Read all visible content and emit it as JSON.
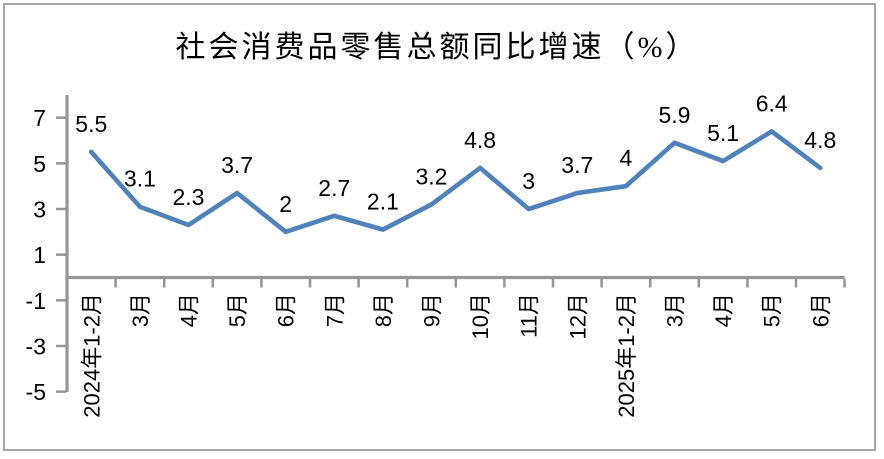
{
  "frame": {
    "background_color": "#ffffff",
    "border_color": "#a6a6a6"
  },
  "chart_data": {
    "type": "line",
    "title": "社会消费品零售总额同比增速（%）",
    "xlabel": "",
    "ylabel": "",
    "categories": [
      "2024年1-2月",
      "3月",
      "4月",
      "5月",
      "6月",
      "7月",
      "8月",
      "9月",
      "10月",
      "11月",
      "12月",
      "2025年1-2月",
      "3月",
      "4月",
      "5月",
      "6月"
    ],
    "series": [
      {
        "values": [
          5.5,
          3.1,
          2.3,
          3.7,
          2,
          2.7,
          2.1,
          3.2,
          4.8,
          3,
          3.7,
          4,
          5.9,
          5.1,
          6.4,
          4.8
        ],
        "labels": [
          "5.5",
          "3.1",
          "2.3",
          "3.7",
          "2",
          "2.7",
          "2.1",
          "3.2",
          "4.8",
          "3",
          "3.7",
          "4",
          "5.9",
          "5.1",
          "6.4",
          "4.8"
        ],
        "color": "#4F81BD"
      }
    ],
    "y_ticks": [
      7,
      5,
      3,
      1,
      -1,
      -3,
      -5
    ],
    "ylim": [
      -5,
      8
    ],
    "grid": false,
    "legend": "none",
    "data_labels": true,
    "x_label_rotation": -90,
    "axis_color": "#969696",
    "label_color": "#000000"
  }
}
